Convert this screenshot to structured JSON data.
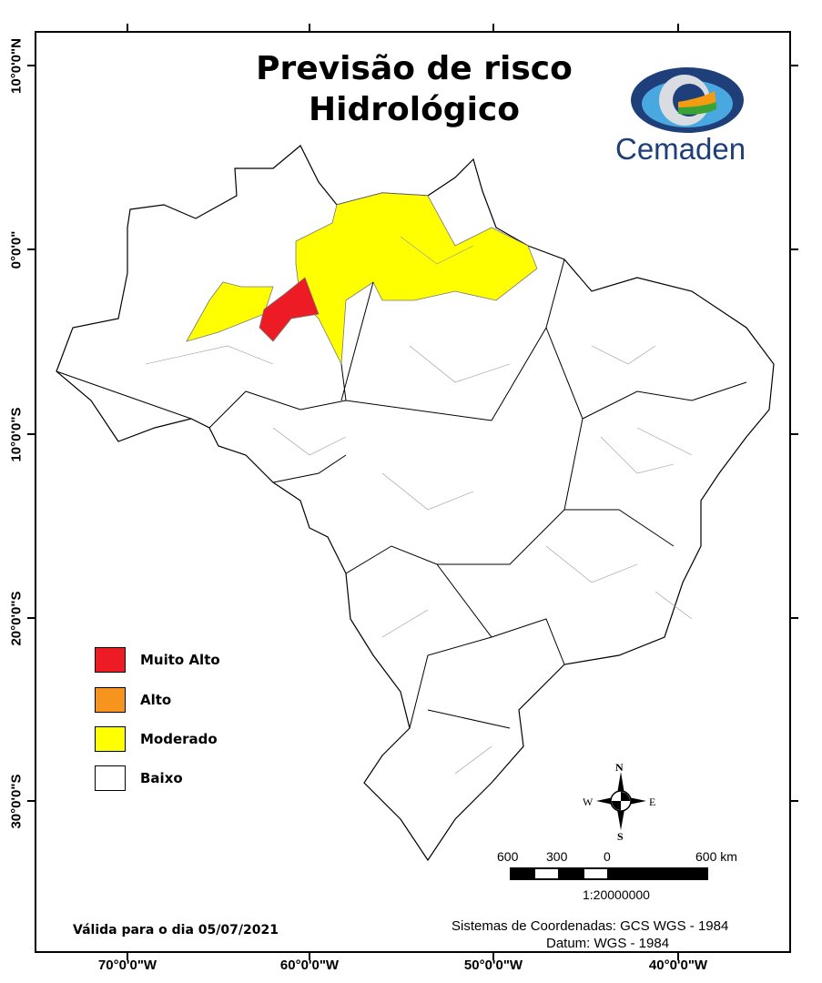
{
  "title": {
    "line1": "Previsão de risco",
    "line2": "Hidrológico"
  },
  "logo": {
    "text": "Cemaden"
  },
  "latitude_labels": [
    "10°0'0\"N",
    "0°0'0\"",
    "10°0'0\"S",
    "20°0'0\"S",
    "30°0'0\"S"
  ],
  "longitude_labels": [
    "70°0'0\"W",
    "60°0'0\"W",
    "50°0'0\"W",
    "40°0'0\"W"
  ],
  "legend": [
    {
      "label": "Muito Alto",
      "color": "#ed1c24"
    },
    {
      "label": "Alto",
      "color": "#f7941d"
    },
    {
      "label": "Moderado",
      "color": "#ffff00"
    },
    {
      "label": "Baixo",
      "color": "#ffffff"
    }
  ],
  "compass": {
    "n": "N",
    "s": "S",
    "e": "E",
    "w": "W"
  },
  "scale_bar": {
    "labels": [
      "600",
      "300",
      "0",
      "600 km"
    ],
    "ratio": "1:20000000"
  },
  "valid_date": "Válida para o dia 05/07/2021",
  "coordinate_system": "Sistemas de Coordenadas: GCS WGS - 1984",
  "datum": "Datum: WGS - 1984"
}
